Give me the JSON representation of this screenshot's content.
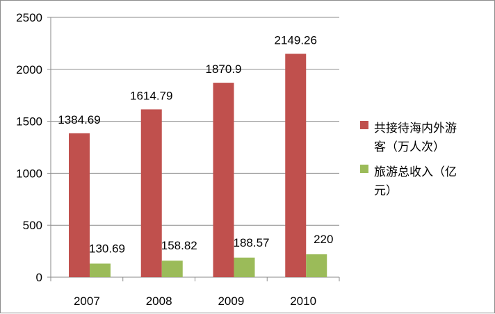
{
  "chart_data": {
    "type": "bar",
    "categories": [
      "2007",
      "2008",
      "2009",
      "2010"
    ],
    "series": [
      {
        "name": "共接待海内外游客（万人次）",
        "values": [
          1384.69,
          1614.79,
          1870.9,
          2149.26
        ],
        "labels": [
          "1384.69",
          "1614.79",
          "1870.9",
          "2149.26"
        ],
        "color": "#c0504d"
      },
      {
        "name": "旅游总收入（亿元）",
        "values": [
          130.69,
          158.82,
          188.57,
          220
        ],
        "labels": [
          "130.69",
          "158.82",
          "188.57",
          "220"
        ],
        "color": "#9bbb59"
      }
    ],
    "ylim": [
      0,
      2500
    ],
    "yticks": [
      "0",
      "500",
      "1000",
      "1500",
      "2000",
      "2500"
    ],
    "grid": true,
    "legend": "right",
    "legend_lines": [
      [
        "共接待海内外游",
        "客（万人次）"
      ],
      [
        "旅游总收入（亿",
        "元）"
      ]
    ]
  }
}
